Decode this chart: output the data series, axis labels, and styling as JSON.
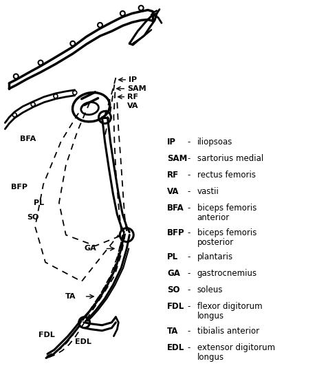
{
  "figure_size": [
    4.61,
    5.35
  ],
  "dpi": 100,
  "background_color": "#ffffff",
  "legend_entries": [
    {
      "abbr": "IP",
      "full": "iliopsoas"
    },
    {
      "abbr": "SAM",
      "full": "sartorius medial"
    },
    {
      "abbr": "RF",
      "full": "rectus femoris"
    },
    {
      "abbr": "VA",
      "full": "vastii"
    },
    {
      "abbr": "BFA",
      "full": "biceps femoris\nanterior"
    },
    {
      "abbr": "BFP",
      "full": "biceps femoris\nposterior"
    },
    {
      "abbr": "PL",
      "full": "plantaris"
    },
    {
      "abbr": "GA",
      "full": "gastrocnemius"
    },
    {
      "abbr": "SO",
      "full": "soleus"
    },
    {
      "abbr": "FDL",
      "full": "flexor digitorum\nlongus"
    },
    {
      "abbr": "TA",
      "full": "tibialis anterior"
    },
    {
      "abbr": "EDL",
      "full": "extensor digitorum\nlongus"
    }
  ],
  "label_fontsize": 8.0,
  "legend_abbr_fontsize": 8.5,
  "legend_full_fontsize": 8.5
}
